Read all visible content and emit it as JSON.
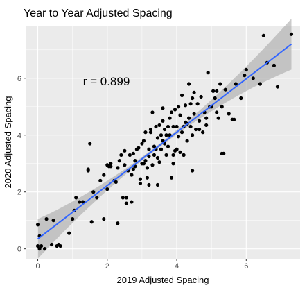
{
  "chart_data": {
    "type": "scatter",
    "title": "Year to Year Adjusted Spacing",
    "xlabel": "2019 Adjusted Spacing",
    "ylabel": "2020 Adjusted Spacing",
    "xlim": [
      -0.35,
      7.55
    ],
    "ylim": [
      -0.35,
      7.85
    ],
    "xticks": [
      0,
      2,
      4,
      6
    ],
    "yticks": [
      0,
      2,
      4,
      6
    ],
    "grid": true,
    "legend": "none",
    "annotation": {
      "text": "r = 0.899",
      "x": 1.3,
      "y": 5.9
    },
    "trend_line": {
      "x": [
        0,
        7.3
      ],
      "y": [
        0.35,
        7.2
      ],
      "color": "#3366ff"
    },
    "confidence_band_color": "#a8a8a8",
    "point_color": "#000000",
    "panel_color": "#ebebeb",
    "points": {
      "x": [
        0.0,
        0.0,
        0.05,
        0.05,
        0.1,
        0.2,
        0.25,
        0.4,
        0.45,
        0.55,
        0.65,
        0.9,
        1.05,
        1.1,
        1.2,
        1.3,
        1.45,
        1.5,
        1.55,
        1.7,
        1.8,
        1.9,
        1.9,
        2.0,
        2.05,
        2.1,
        2.1,
        2.2,
        2.25,
        2.3,
        2.35,
        2.4,
        2.45,
        2.5,
        2.55,
        2.55,
        2.6,
        2.65,
        2.7,
        2.7,
        2.75,
        2.8,
        2.8,
        2.85,
        2.9,
        2.95,
        3.0,
        3.0,
        3.05,
        3.05,
        3.1,
        3.1,
        3.15,
        3.15,
        3.2,
        3.2,
        3.25,
        3.25,
        3.3,
        3.3,
        3.35,
        3.35,
        3.4,
        3.4,
        3.45,
        3.45,
        3.5,
        3.5,
        3.55,
        3.55,
        3.6,
        3.6,
        3.65,
        3.65,
        3.7,
        3.7,
        3.75,
        3.75,
        3.8,
        3.8,
        3.85,
        3.85,
        3.9,
        3.9,
        3.95,
        3.95,
        4.0,
        4.0,
        4.05,
        4.05,
        4.1,
        4.1,
        4.15,
        4.15,
        4.2,
        4.2,
        4.25,
        4.25,
        4.3,
        4.3,
        4.35,
        4.35,
        4.4,
        4.4,
        4.45,
        4.45,
        4.5,
        4.5,
        4.55,
        4.6,
        4.65,
        4.7,
        4.75,
        4.8,
        4.85,
        4.9,
        4.95,
        5.0,
        5.05,
        5.1,
        5.15,
        5.2,
        5.25,
        5.3,
        5.35,
        5.4,
        5.5,
        5.6,
        5.65,
        5.7,
        5.85,
        5.95,
        6.0,
        6.2,
        6.4,
        6.5,
        6.6,
        6.8,
        6.9,
        7.3,
        1.45,
        2.95,
        3.2,
        4.45,
        5.3,
        0.6,
        1.6,
        2.3,
        4.85,
        3.6,
        2.5,
        4.2,
        3.9,
        4.65,
        5.15,
        1.0,
        2.0,
        2.75,
        3.45
      ],
      "y": [
        0.1,
        0.85,
        0.0,
        0.45,
        0.1,
        0.0,
        1.05,
        0.15,
        1.0,
        0.1,
        0.1,
        0.55,
        1.35,
        1.8,
        1.65,
        1.65,
        2.8,
        3.7,
        0.95,
        1.8,
        2.4,
        1.05,
        2.6,
        2.1,
        2.9,
        3.0,
        2.9,
        2.4,
        2.35,
        0.9,
        3.1,
        3.3,
        1.8,
        2.95,
        1.6,
        1.8,
        2.75,
        3.3,
        1.65,
        2.6,
        2.8,
        2.9,
        3.1,
        3.5,
        3.55,
        2.3,
        3.0,
        3.7,
        3.0,
        3.8,
        3.1,
        4.1,
        2.5,
        2.85,
        3.25,
        3.5,
        4.1,
        4.2,
        2.95,
        4.8,
        3.3,
        3.6,
        3.5,
        4.3,
        2.25,
        3.9,
        3.05,
        4.35,
        3.5,
        4.0,
        3.8,
        4.5,
        3.7,
        4.2,
        3.3,
        4.0,
        3.6,
        4.3,
        4.0,
        4.6,
        2.5,
        4.8,
        3.3,
        4.3,
        3.45,
        4.9,
        4.3,
        3.5,
        3.95,
        5.0,
        3.4,
        4.7,
        4.1,
        5.4,
        3.3,
        4.3,
        4.45,
        5.05,
        3.8,
        4.4,
        4.6,
        5.8,
        4.3,
        5.1,
        4.0,
        5.3,
        4.75,
        5.5,
        4.2,
        5.1,
        4.5,
        5.35,
        4.1,
        4.8,
        4.6,
        6.2,
        5.0,
        5.0,
        5.55,
        5.3,
        5.55,
        4.6,
        5.8,
        5.0,
        3.35,
        5.6,
        4.75,
        4.55,
        4.55,
        5.8,
        5.3,
        6.1,
        6.3,
        6.0,
        5.8,
        7.5,
        6.55,
        6.45,
        5.7,
        7.55,
        2.75,
        2.45,
        2.25,
        2.75,
        3.35,
        0.15,
        2.0,
        2.85,
        4.35,
        4.95,
        3.45,
        3.3,
        3.0,
        4.2,
        4.8,
        1.05,
        2.95,
        3.35,
        3.2
      ]
    }
  }
}
